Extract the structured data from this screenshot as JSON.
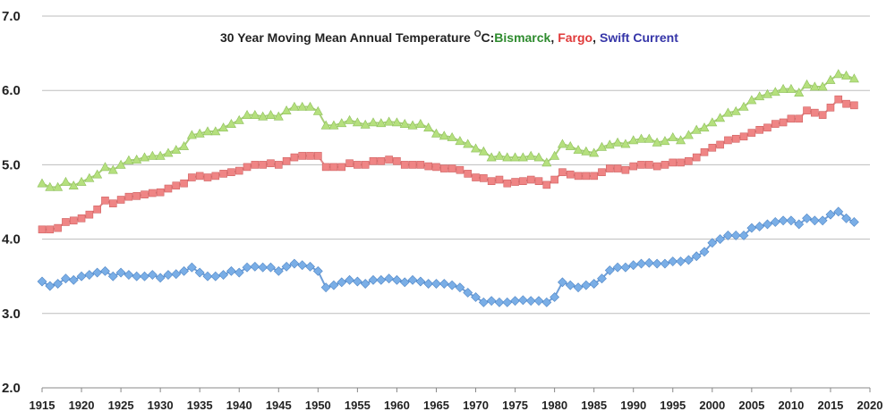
{
  "chart_data": {
    "type": "line",
    "title": {
      "main": "30 Year Moving Mean Annual Temperature ",
      "unit_super": "O",
      "unit": "C:",
      "sep1": ",",
      "sep2": ","
    },
    "xlabel": "",
    "ylabel": "",
    "xlim": [
      1915,
      2020
    ],
    "ylim": [
      2.0,
      7.0
    ],
    "x_ticks": [
      1915,
      1920,
      1925,
      1930,
      1935,
      1940,
      1945,
      1950,
      1955,
      1960,
      1965,
      1970,
      1975,
      1980,
      1985,
      1990,
      1995,
      2000,
      2005,
      2010,
      2015,
      2020
    ],
    "y_ticks": [
      "2.0",
      "3.0",
      "4.0",
      "5.0",
      "6.0",
      "7.0"
    ],
    "y_tick_values": [
      2.0,
      3.0,
      4.0,
      5.0,
      6.0,
      7.0
    ],
    "grid": true,
    "legend": "in-title",
    "x": [
      1915,
      1916,
      1917,
      1918,
      1919,
      1920,
      1921,
      1922,
      1923,
      1924,
      1925,
      1926,
      1927,
      1928,
      1929,
      1930,
      1931,
      1932,
      1933,
      1934,
      1935,
      1936,
      1937,
      1938,
      1939,
      1940,
      1941,
      1942,
      1943,
      1944,
      1945,
      1946,
      1947,
      1948,
      1949,
      1950,
      1951,
      1952,
      1953,
      1954,
      1955,
      1956,
      1957,
      1958,
      1959,
      1960,
      1961,
      1962,
      1963,
      1964,
      1965,
      1966,
      1967,
      1968,
      1969,
      1970,
      1971,
      1972,
      1973,
      1974,
      1975,
      1976,
      1977,
      1978,
      1979,
      1980,
      1981,
      1982,
      1983,
      1984,
      1985,
      1986,
      1987,
      1988,
      1989,
      1990,
      1991,
      1992,
      1993,
      1994,
      1995,
      1996,
      1997,
      1998,
      1999,
      2000,
      2001,
      2002,
      2003,
      2004,
      2005,
      2006,
      2007,
      2008,
      2009,
      2010,
      2011,
      2012,
      2013,
      2014,
      2015,
      2016,
      2017,
      2018
    ],
    "series": [
      {
        "name": "Bismarck",
        "color": "#2e8b2e",
        "line_color": "#a9cf7a",
        "marker_fill": "#b5e07e",
        "marker": "triangle",
        "values": [
          4.75,
          4.7,
          4.7,
          4.77,
          4.72,
          4.77,
          4.82,
          4.87,
          4.97,
          4.93,
          5.0,
          5.06,
          5.07,
          5.1,
          5.12,
          5.12,
          5.16,
          5.2,
          5.25,
          5.4,
          5.42,
          5.45,
          5.45,
          5.5,
          5.55,
          5.6,
          5.67,
          5.67,
          5.65,
          5.67,
          5.65,
          5.73,
          5.78,
          5.78,
          5.78,
          5.72,
          5.53,
          5.53,
          5.56,
          5.6,
          5.57,
          5.54,
          5.57,
          5.56,
          5.58,
          5.57,
          5.55,
          5.53,
          5.55,
          5.5,
          5.42,
          5.39,
          5.37,
          5.32,
          5.28,
          5.22,
          5.18,
          5.1,
          5.12,
          5.1,
          5.1,
          5.1,
          5.12,
          5.1,
          5.03,
          5.12,
          5.28,
          5.25,
          5.2,
          5.18,
          5.16,
          5.24,
          5.27,
          5.3,
          5.28,
          5.33,
          5.35,
          5.35,
          5.3,
          5.32,
          5.37,
          5.33,
          5.4,
          5.47,
          5.5,
          5.57,
          5.63,
          5.7,
          5.72,
          5.78,
          5.87,
          5.92,
          5.95,
          5.98,
          6.02,
          6.02,
          5.97,
          6.08,
          6.05,
          6.05,
          6.14,
          6.22,
          6.2,
          6.16
        ]
      },
      {
        "name": "Fargo",
        "color": "#e03a3a",
        "line_color": "#e08a8a",
        "marker_fill": "#ef8585",
        "marker": "square",
        "values": [
          4.13,
          4.13,
          4.15,
          4.23,
          4.25,
          4.28,
          4.33,
          4.4,
          4.52,
          4.48,
          4.53,
          4.57,
          4.58,
          4.6,
          4.62,
          4.63,
          4.68,
          4.72,
          4.75,
          4.83,
          4.85,
          4.83,
          4.85,
          4.88,
          4.9,
          4.92,
          4.97,
          5.0,
          5.0,
          5.02,
          5.0,
          5.05,
          5.1,
          5.12,
          5.12,
          5.12,
          4.97,
          4.97,
          4.97,
          5.02,
          5.0,
          5.0,
          5.05,
          5.05,
          5.07,
          5.05,
          5.0,
          5.0,
          5.0,
          4.98,
          4.97,
          4.95,
          4.95,
          4.93,
          4.88,
          4.83,
          4.82,
          4.78,
          4.8,
          4.75,
          4.77,
          4.78,
          4.8,
          4.78,
          4.73,
          4.8,
          4.9,
          4.87,
          4.85,
          4.85,
          4.85,
          4.9,
          4.95,
          4.95,
          4.93,
          4.98,
          5.0,
          5.0,
          4.98,
          5.0,
          5.03,
          5.03,
          5.05,
          5.1,
          5.17,
          5.23,
          5.27,
          5.33,
          5.35,
          5.38,
          5.43,
          5.47,
          5.5,
          5.55,
          5.57,
          5.62,
          5.62,
          5.73,
          5.7,
          5.67,
          5.77,
          5.88,
          5.82,
          5.8
        ]
      },
      {
        "name": "Swift Current",
        "color": "#3535a8",
        "line_color": "#6f9fd8",
        "marker_fill": "#7aaee6",
        "marker": "diamond",
        "values": [
          3.43,
          3.37,
          3.4,
          3.47,
          3.45,
          3.5,
          3.52,
          3.55,
          3.57,
          3.5,
          3.55,
          3.52,
          3.5,
          3.5,
          3.52,
          3.48,
          3.52,
          3.53,
          3.57,
          3.62,
          3.55,
          3.5,
          3.5,
          3.52,
          3.57,
          3.55,
          3.62,
          3.63,
          3.62,
          3.62,
          3.57,
          3.63,
          3.67,
          3.65,
          3.63,
          3.57,
          3.35,
          3.38,
          3.42,
          3.45,
          3.43,
          3.4,
          3.45,
          3.45,
          3.47,
          3.45,
          3.42,
          3.45,
          3.43,
          3.4,
          3.4,
          3.4,
          3.38,
          3.35,
          3.28,
          3.22,
          3.15,
          3.17,
          3.15,
          3.15,
          3.17,
          3.18,
          3.17,
          3.17,
          3.15,
          3.22,
          3.42,
          3.38,
          3.35,
          3.38,
          3.4,
          3.47,
          3.58,
          3.62,
          3.62,
          3.65,
          3.67,
          3.68,
          3.67,
          3.67,
          3.7,
          3.7,
          3.72,
          3.77,
          3.83,
          3.95,
          4.0,
          4.05,
          4.05,
          4.05,
          4.15,
          4.17,
          4.2,
          4.23,
          4.25,
          4.25,
          4.2,
          4.28,
          4.25,
          4.25,
          4.33,
          4.37,
          4.28,
          4.23
        ]
      }
    ]
  }
}
